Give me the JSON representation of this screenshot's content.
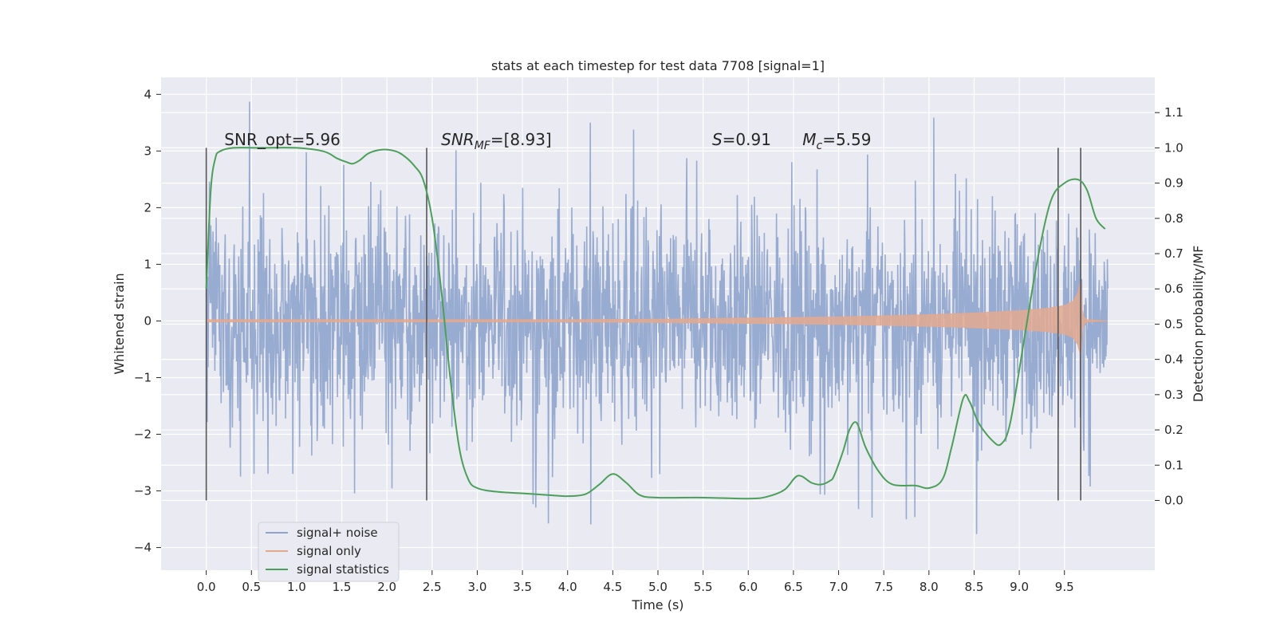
{
  "chart_data": {
    "type": "line",
    "title": "stats at each timestep for test data 7708 [signal=1]",
    "xlabel": "Time (s)",
    "ylabel_left": "Whitened strain",
    "ylabel_right": "Detection probability/MF",
    "xlim": [
      -0.5,
      10.5
    ],
    "ylim_left": [
      -4.4,
      4.3
    ],
    "ylim_right": [
      -0.198,
      1.2
    ],
    "x_ticks": [
      "0.0",
      "0.5",
      "1.0",
      "1.5",
      "2.0",
      "2.5",
      "3.0",
      "3.5",
      "4.0",
      "4.5",
      "5.0",
      "5.5",
      "6.0",
      "6.5",
      "7.0",
      "7.5",
      "8.0",
      "8.5",
      "9.0",
      "9.5"
    ],
    "y_left_ticks": [
      "4",
      "3",
      "2",
      "1",
      "0",
      "−1",
      "−2",
      "−3",
      "−4"
    ],
    "y_right_ticks": [
      "1.1",
      "1.0",
      "0.9",
      "0.8",
      "0.7",
      "0.6",
      "0.5",
      "0.4",
      "0.3",
      "0.2",
      "0.1",
      "0.0"
    ],
    "grid": true,
    "legend_position": "lower-left",
    "series": [
      {
        "name": "signal+ noise",
        "color": "#8fa4cc",
        "description": "dense whitened noise trace, mostly within [-1.5, 1.8], spikes to about 3.9 and -4.0",
        "envelope": {
          "x": [
            0.0,
            0.5,
            1.0,
            1.5,
            2.0,
            2.5,
            3.0,
            3.5,
            4.0,
            4.5,
            5.0,
            5.5,
            6.0,
            6.5,
            7.0,
            7.5,
            8.0,
            8.5,
            9.0,
            9.5,
            9.98
          ],
          "max": [
            3.2,
            3.9,
            3.0,
            2.9,
            3.1,
            2.8,
            3.2,
            3.0,
            3.3,
            3.7,
            3.0,
            2.8,
            3.2,
            3.2,
            3.0,
            2.9,
            3.6,
            3.5,
            3.6,
            3.0,
            2.8
          ],
          "min": [
            -2.9,
            -2.7,
            -2.7,
            -3.1,
            -2.9,
            -3.4,
            -3.5,
            -3.0,
            -4.0,
            -3.2,
            -2.7,
            -2.8,
            -3.0,
            -3.0,
            -3.1,
            -3.6,
            -3.4,
            -3.8,
            -3.1,
            -3.1,
            -2.8
          ]
        }
      },
      {
        "name": "signal only",
        "color": "#e3a98f",
        "description": "chirp envelope growing toward merger near t=9.7 s",
        "envelope": {
          "x": [
            0.0,
            2.0,
            4.0,
            5.0,
            6.0,
            7.0,
            8.0,
            8.5,
            9.0,
            9.3,
            9.5,
            9.6,
            9.65,
            9.68,
            9.7,
            9.75,
            9.98
          ],
          "amp": [
            0.02,
            0.02,
            0.02,
            0.03,
            0.05,
            0.07,
            0.11,
            0.14,
            0.18,
            0.22,
            0.27,
            0.35,
            0.5,
            0.75,
            0.1,
            0.02,
            0.0
          ]
        }
      },
      {
        "name": "signal statistics",
        "color": "#4c9f5a",
        "axis": "right",
        "x": [
          0.0,
          0.05,
          0.1,
          0.15,
          0.3,
          0.6,
          1.0,
          1.3,
          1.45,
          1.55,
          1.62,
          1.7,
          1.8,
          1.95,
          2.1,
          2.2,
          2.3,
          2.4,
          2.5,
          2.6,
          2.7,
          2.8,
          2.9,
          3.0,
          3.2,
          3.5,
          3.8,
          4.0,
          4.2,
          4.35,
          4.5,
          4.65,
          4.8,
          5.0,
          5.5,
          6.0,
          6.2,
          6.4,
          6.55,
          6.7,
          6.8,
          6.9,
          6.95,
          7.05,
          7.12,
          7.2,
          7.3,
          7.45,
          7.6,
          7.85,
          8.0,
          8.15,
          8.25,
          8.38,
          8.45,
          8.55,
          8.7,
          8.8,
          8.9,
          9.05,
          9.2,
          9.35,
          9.5,
          9.65,
          9.75,
          9.85,
          9.95
        ],
        "y": [
          0.6,
          0.88,
          0.97,
          0.99,
          1.0,
          1.0,
          1.0,
          0.99,
          0.97,
          0.96,
          0.955,
          0.965,
          0.985,
          0.995,
          0.99,
          0.975,
          0.95,
          0.91,
          0.8,
          0.6,
          0.35,
          0.15,
          0.06,
          0.035,
          0.025,
          0.02,
          0.015,
          0.012,
          0.018,
          0.045,
          0.075,
          0.05,
          0.015,
          0.008,
          0.008,
          0.005,
          0.01,
          0.03,
          0.07,
          0.05,
          0.045,
          0.055,
          0.07,
          0.14,
          0.2,
          0.22,
          0.15,
          0.08,
          0.045,
          0.042,
          0.035,
          0.06,
          0.15,
          0.29,
          0.28,
          0.22,
          0.17,
          0.16,
          0.22,
          0.45,
          0.68,
          0.85,
          0.9,
          0.91,
          0.88,
          0.8,
          0.77
        ]
      }
    ],
    "vertical_lines": [
      0.0,
      2.44,
      9.43,
      9.68
    ],
    "annotations": [
      {
        "x": 0.2,
        "y": 3.1,
        "text": "SNR_opt=5.96"
      },
      {
        "x": 2.6,
        "y": 3.1,
        "base": "SNR",
        "sub": "MF",
        "rest": "=[8.93]"
      },
      {
        "x": 5.6,
        "y": 3.1,
        "base": "S",
        "sub": "",
        "rest": "=0.91"
      },
      {
        "x": 6.6,
        "y": 3.1,
        "base": "M",
        "sub": "c",
        "rest": "=5.59"
      }
    ]
  }
}
